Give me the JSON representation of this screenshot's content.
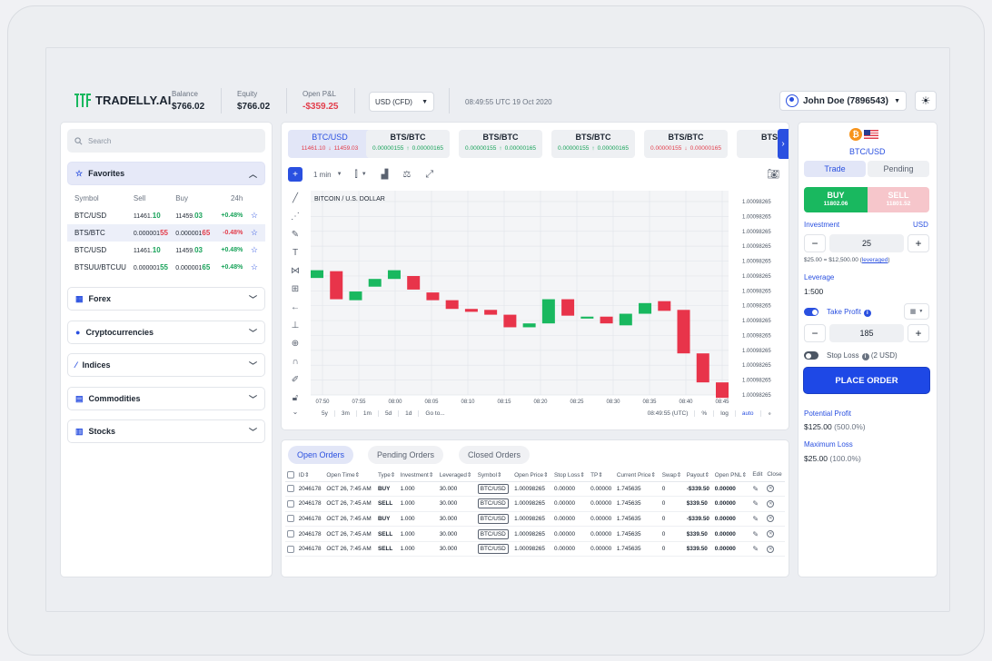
{
  "brand": {
    "name": "TRADELLY.AI"
  },
  "header": {
    "balance_label": "Balance",
    "balance_value": "$766.02",
    "equity_label": "Equity",
    "equity_value": "$766.02",
    "openpl_label": "Open P&L",
    "openpl_value": "-$359.25",
    "currency": "USD (CFD)",
    "time": "08:49:55 UTC 19 Oct 2020",
    "user": "John Doe (7896543)"
  },
  "sidebar": {
    "search_placeholder": "Search",
    "favorites_label": "Favorites",
    "columns": [
      "Symbol",
      "Sell",
      "Buy",
      "24h"
    ],
    "rows": [
      {
        "symbol": "BTC/USD",
        "sell_a": "11461.",
        "sell_b": "10",
        "buy_a": "11459.",
        "buy_b": "03",
        "change": "+0.48%",
        "dir": "up",
        "selected": false
      },
      {
        "symbol": "BTS/BTC",
        "sell_a": "0.000001",
        "sell_b": "55",
        "buy_a": "0.000001",
        "buy_b": "65",
        "change": "-0.48%",
        "dir": "down",
        "selected": true
      },
      {
        "symbol": "BTC/USD",
        "sell_a": "11461.",
        "sell_b": "10",
        "buy_a": "11459.",
        "buy_b": "03",
        "change": "+0.48%",
        "dir": "up",
        "selected": false
      },
      {
        "symbol": "BTSUU/BTCUU",
        "sell_a": "0.000001",
        "sell_b": "55",
        "buy_a": "0.000001",
        "buy_b": "65",
        "change": "+0.48%",
        "dir": "up",
        "selected": false
      }
    ],
    "categories": [
      "Forex",
      "Cryptocurrencies",
      "Indices",
      "Commodities",
      "Stocks"
    ]
  },
  "tickers": [
    {
      "name": "BTC/USD",
      "left": "11461.10",
      "right": "11459.03",
      "active": true
    },
    {
      "name": "BTS/BTC",
      "left": "0.00000155",
      "right": "0.00000165",
      "active": false
    },
    {
      "name": "BTS/BTC",
      "left": "0.00000155",
      "right": "0.00000165",
      "active": false
    },
    {
      "name": "BTS/BTC",
      "left": "0.00000155",
      "right": "0.00000165",
      "active": false
    },
    {
      "name": "BTS/BTC",
      "left": "0.00000155",
      "right": "0.00000165",
      "active": false
    },
    {
      "name": "BTS",
      "left": "",
      "right": "",
      "active": false
    }
  ],
  "chart_toolbar": {
    "interval": "1 min"
  },
  "chart_data": {
    "type": "candlestick",
    "title": "BITCOIN / U.S. DOLLAR",
    "x_ticks": [
      "07:50",
      "07:55",
      "08:00",
      "08:05",
      "08:10",
      "08:15",
      "08:20",
      "08:25",
      "08:30",
      "08:35",
      "08:40",
      "08:45"
    ],
    "y_ticks": [
      "1.00098265",
      "1.00098265",
      "1.00098265",
      "1.00098265",
      "1.00098265",
      "1.00098265",
      "1.00098265",
      "1.00098265",
      "1.00098265",
      "1.00098265",
      "1.00098265",
      "1.00098265",
      "1.00098265",
      "1.00098265"
    ],
    "candles": [
      {
        "o": 0.395,
        "c": 0.355,
        "dir": "up"
      },
      {
        "o": 0.36,
        "c": 0.505,
        "dir": "down"
      },
      {
        "o": 0.51,
        "c": 0.465,
        "dir": "up"
      },
      {
        "o": 0.44,
        "c": 0.4,
        "dir": "up"
      },
      {
        "o": 0.4,
        "c": 0.355,
        "dir": "up"
      },
      {
        "o": 0.385,
        "c": 0.455,
        "dir": "down"
      },
      {
        "o": 0.47,
        "c": 0.51,
        "dir": "down"
      },
      {
        "o": 0.51,
        "c": 0.555,
        "dir": "down"
      },
      {
        "o": 0.555,
        "c": 0.57,
        "dir": "down"
      },
      {
        "o": 0.56,
        "c": 0.585,
        "dir": "down"
      },
      {
        "o": 0.585,
        "c": 0.65,
        "dir": "down"
      },
      {
        "o": 0.65,
        "c": 0.63,
        "dir": "up"
      },
      {
        "o": 0.63,
        "c": 0.505,
        "dir": "up"
      },
      {
        "o": 0.505,
        "c": 0.59,
        "dir": "down"
      },
      {
        "o": 0.595,
        "c": 0.605,
        "dir": "up"
      },
      {
        "o": 0.595,
        "c": 0.63,
        "dir": "down"
      },
      {
        "o": 0.64,
        "c": 0.58,
        "dir": "up"
      },
      {
        "o": 0.58,
        "c": 0.525,
        "dir": "up"
      },
      {
        "o": 0.515,
        "c": 0.565,
        "dir": "down"
      },
      {
        "o": 0.56,
        "c": 0.785,
        "dir": "down"
      },
      {
        "o": 0.785,
        "c": 0.935,
        "dir": "down"
      },
      {
        "o": 0.935,
        "c": 1.015,
        "dir": "down"
      }
    ],
    "ranges": [
      "5y",
      "3m",
      "1m",
      "5d",
      "1d",
      "Go to..."
    ],
    "status_time": "08:49:55 (UTC)",
    "options": [
      "%",
      "log",
      "auto"
    ]
  },
  "orders": {
    "tabs": [
      "Open Orders",
      "Pending Orders",
      "Closed Orders"
    ],
    "columns": [
      "ID",
      "Open Time",
      "Type",
      "Investment",
      "Leveraged",
      "Symbol",
      "Open Price",
      "Stop Loss",
      "TP",
      "Current Price",
      "Swap",
      "Payout",
      "Open PNL",
      "Edit",
      "Close"
    ],
    "rows": [
      {
        "id": "2046178",
        "time": "OCT 26, 7:45 AM",
        "type": "BUY",
        "inv": "1.000",
        "lev": "30.000",
        "sym": "BTC/USD",
        "open": "1.00098265",
        "sl": "0.00000",
        "tp": "0.00000",
        "cur": "1.745635",
        "swap": "0",
        "payout": "-$339.50",
        "pnl": "0.00000"
      },
      {
        "id": "2046178",
        "time": "OCT 26, 7:45 AM",
        "type": "SELL",
        "inv": "1.000",
        "lev": "30.000",
        "sym": "BTC/USD",
        "open": "1.00098265",
        "sl": "0.00000",
        "tp": "0.00000",
        "cur": "1.745635",
        "swap": "0",
        "payout": "$339.50",
        "pnl": "0.00000"
      },
      {
        "id": "2046178",
        "time": "OCT 26, 7:45 AM",
        "type": "BUY",
        "inv": "1.000",
        "lev": "30.000",
        "sym": "BTC/USD",
        "open": "1.00098265",
        "sl": "0.00000",
        "tp": "0.00000",
        "cur": "1.745635",
        "swap": "0",
        "payout": "-$339.50",
        "pnl": "0.00000"
      },
      {
        "id": "2046178",
        "time": "OCT 26, 7:45 AM",
        "type": "SELL",
        "inv": "1.000",
        "lev": "30.000",
        "sym": "BTC/USD",
        "open": "1.00098265",
        "sl": "0.00000",
        "tp": "0.00000",
        "cur": "1.745635",
        "swap": "0",
        "payout": "$339.50",
        "pnl": "0.00000"
      },
      {
        "id": "2046178",
        "time": "OCT 26, 7:45 AM",
        "type": "SELL",
        "inv": "1.000",
        "lev": "30.000",
        "sym": "BTC/USD",
        "open": "1.00098265",
        "sl": "0.00000",
        "tp": "0.00000",
        "cur": "1.745635",
        "swap": "0",
        "payout": "$339.50",
        "pnl": "0.00000"
      }
    ]
  },
  "trade": {
    "pair": "BTC/USD",
    "tab_trade": "Trade",
    "tab_pending": "Pending",
    "buy_label": "BUY",
    "buy_price": "11802.06",
    "sell_label": "SELL",
    "sell_price": "11801.52",
    "investment_label": "Investment",
    "investment_currency": "USD",
    "investment_value": "25",
    "leverage_note_a": "$25.00 = $12,500.00 (",
    "leverage_note_link": "leveraged",
    "leverage_note_b": ")",
    "leverage_label": "Leverage",
    "leverage_value": "1:500",
    "take_profit_label": "Take Profit",
    "take_profit_value": "185",
    "stop_loss_label": "Stop Loss",
    "stop_loss_note": "(2 USD)",
    "place_order": "PLACE ORDER",
    "potential_profit_label": "Potential Profit",
    "potential_profit_value": "$125.00",
    "potential_profit_pct": "(500.0%)",
    "max_loss_label": "Maximum Loss",
    "max_loss_value": "$25.00",
    "max_loss_pct": "(100.0%)"
  },
  "colors": {
    "accent": "#1e48e6",
    "up": "#19b85f",
    "down": "#e8344a"
  }
}
